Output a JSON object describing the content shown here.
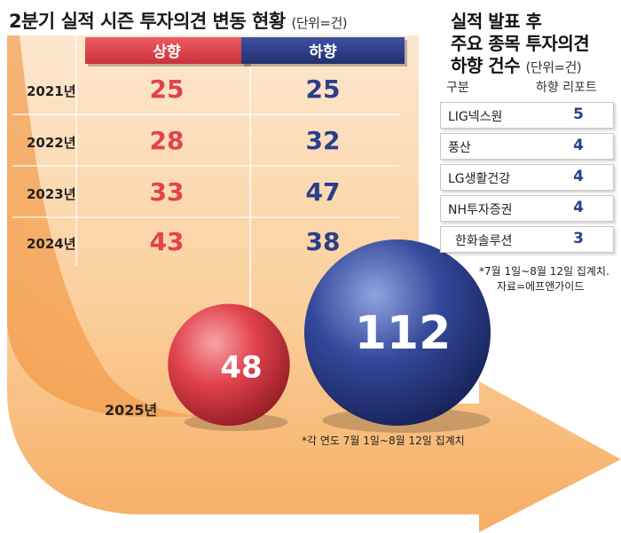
{
  "title": "2분기 실적 시즌 투자의견 변동 현황",
  "unit": "(단위=건)",
  "colors": {
    "up": "#e2424d",
    "down": "#2b3e8c",
    "arrow": "#f4a35a"
  },
  "chart_data": {
    "type": "table",
    "columns": [
      "상향",
      "하향"
    ],
    "rows": [
      {
        "year": "2021년",
        "up": 25,
        "down": 25
      },
      {
        "year": "2022년",
        "up": 28,
        "down": 32
      },
      {
        "year": "2023년",
        "up": 33,
        "down": 47
      },
      {
        "year": "2024년",
        "up": 43,
        "down": 38
      }
    ],
    "highlight": {
      "year": "2025년",
      "up": 48,
      "down": 112
    },
    "footnote": "*각 연도 7월 1일~8월 12일 집계치"
  },
  "side": {
    "title_lines": [
      "실적 발표 후",
      "주요 종목 투자의견",
      "하향 건수"
    ],
    "unit": "(단위=건)",
    "headers": [
      "구분",
      "하향 리포트"
    ],
    "rows": [
      {
        "name": "LIG넥스원",
        "count": 5
      },
      {
        "name": "풍산",
        "count": 4
      },
      {
        "name": "LG생활건강",
        "count": 4
      },
      {
        "name": "NH투자증권",
        "count": 4
      },
      {
        "name": "한화솔루션",
        "count": 3
      }
    ],
    "note_lines": [
      "*7월 1일~8월 12일 집계치.",
      "자료=에프앤가이드"
    ]
  }
}
